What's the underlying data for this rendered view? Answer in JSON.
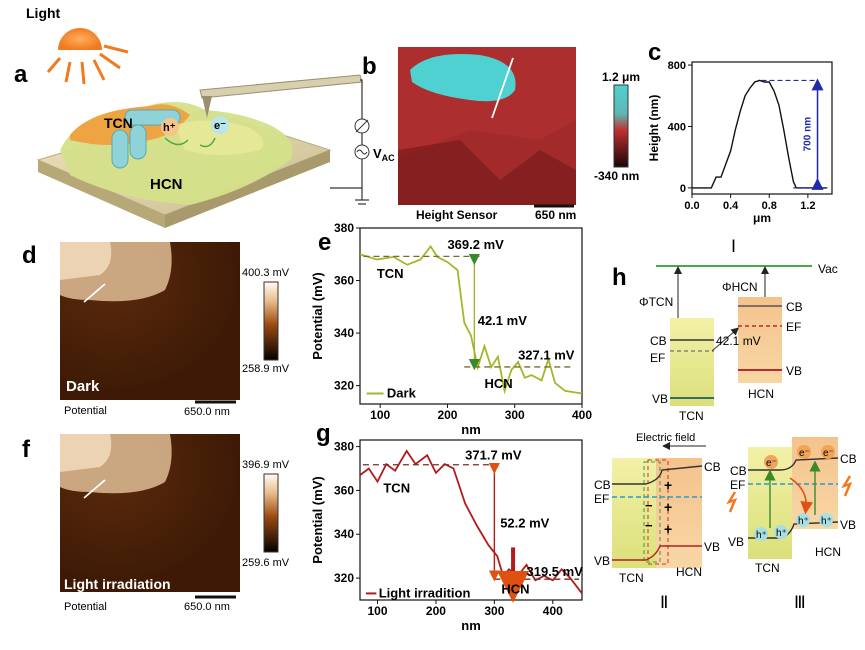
{
  "panels": {
    "a": "a",
    "b": "b",
    "c": "c",
    "d": "d",
    "e": "e",
    "f": "f",
    "g": "g",
    "h": "h"
  },
  "panel_a": {
    "light_label": "Light",
    "tcn_label": "TCN",
    "hcn_label": "HCN",
    "hole_label": "h⁺",
    "electron_label": "e⁻",
    "vac_label": "V",
    "vac_sub": "AC"
  },
  "panel_b": {
    "scale_max": "1.2 μm",
    "scale_min": "-340 nm",
    "caption": "Height Sensor",
    "scalebar": "650 nm"
  },
  "panel_d": {
    "condition": "Dark",
    "scale_max": "400.3 mV",
    "scale_min": "258.9 mV",
    "caption": "Potential",
    "scalebar": "650.0 nm"
  },
  "panel_f": {
    "condition": "Light irradiation",
    "scale_max": "396.9 mV",
    "scale_min": "259.6 mV",
    "caption": "Potential",
    "scalebar": "650.0 nm"
  },
  "panel_h": {
    "vac": "Vac",
    "phi_tcn": "ΦTCN",
    "phi_hcn": "ΦHCN",
    "cb": "CB",
    "vb": "VB",
    "ef": "EF",
    "delta": "42.1 mV",
    "tcn": "TCN",
    "hcn": "HCN",
    "roman1": "Ⅰ",
    "roman2": "Ⅱ",
    "roman3": "Ⅲ",
    "efield": "Electric field",
    "plus": "+",
    "minus": "−",
    "e": "e⁻",
    "h": "h⁺"
  },
  "chart_data": [
    {
      "id": "c",
      "type": "line",
      "xlabel": "μm",
      "ylabel": "Height (nm)",
      "xlim": [
        0.0,
        1.45
      ],
      "ylim": [
        -40,
        820
      ],
      "xticks": [
        "0.0",
        "0.4",
        "0.8",
        "1.2"
      ],
      "yticks": [
        "0",
        "400",
        "800"
      ],
      "annotation": "700 nm",
      "series": [
        {
          "x": [
            0.0,
            0.2,
            0.25,
            0.3,
            0.4,
            0.45,
            0.5,
            0.55,
            0.6,
            0.65,
            0.7,
            0.75,
            0.8,
            0.85,
            0.9,
            0.95,
            1.0,
            1.05,
            1.08,
            1.12,
            1.2,
            1.3,
            1.4
          ],
          "y": [
            0,
            0,
            70,
            70,
            240,
            380,
            500,
            600,
            650,
            690,
            700,
            690,
            690,
            630,
            540,
            380,
            200,
            40,
            0,
            0,
            0,
            0,
            0
          ]
        }
      ]
    },
    {
      "id": "e",
      "type": "line",
      "xlabel": "nm",
      "ylabel": "Potential (mV)",
      "xlim": [
        70,
        400
      ],
      "ylim": [
        313,
        380
      ],
      "xticks": [
        "100",
        "200",
        "300",
        "400"
      ],
      "yticks": [
        "320",
        "340",
        "360",
        "380"
      ],
      "color": "#a6b52a",
      "annotations": [
        "TCN",
        "369.2 mV",
        "42.1 mV",
        "327.1 mV",
        "HCN"
      ],
      "series": [
        {
          "name": "Dark",
          "x": [
            70,
            95,
            120,
            140,
            160,
            175,
            185,
            200,
            215,
            225,
            235,
            245,
            255,
            265,
            275,
            285,
            295,
            305,
            315,
            325,
            340,
            350,
            360,
            375,
            400
          ],
          "y": [
            370,
            368,
            369,
            366,
            368,
            373,
            369,
            367,
            364,
            344,
            339,
            327,
            335,
            327,
            331,
            318,
            326,
            329,
            323,
            324,
            322,
            330,
            321,
            318,
            317
          ]
        }
      ]
    },
    {
      "id": "g",
      "type": "line",
      "xlabel": "nm",
      "ylabel": "Potential (mV)",
      "xlim": [
        70,
        450
      ],
      "ylim": [
        310,
        383
      ],
      "xticks": [
        "100",
        "200",
        "300",
        "400"
      ],
      "yticks": [
        "320",
        "340",
        "360",
        "380"
      ],
      "color": "#b31b1b",
      "annotations": [
        "TCN",
        "371.7 mV",
        "52.2 mV",
        "319.5 mV",
        "HCN"
      ],
      "series": [
        {
          "name": "Light irradition",
          "x": [
            70,
            85,
            100,
            115,
            130,
            150,
            165,
            185,
            200,
            215,
            230,
            250,
            270,
            290,
            305,
            315,
            325,
            340,
            355,
            370,
            385,
            400,
            415,
            430,
            450
          ],
          "y": [
            367,
            370,
            364,
            372,
            369,
            378,
            372,
            376,
            368,
            372,
            370,
            354,
            344,
            335,
            330,
            321,
            324,
            321,
            326,
            319,
            321,
            319,
            324,
            320,
            313
          ]
        }
      ]
    }
  ]
}
